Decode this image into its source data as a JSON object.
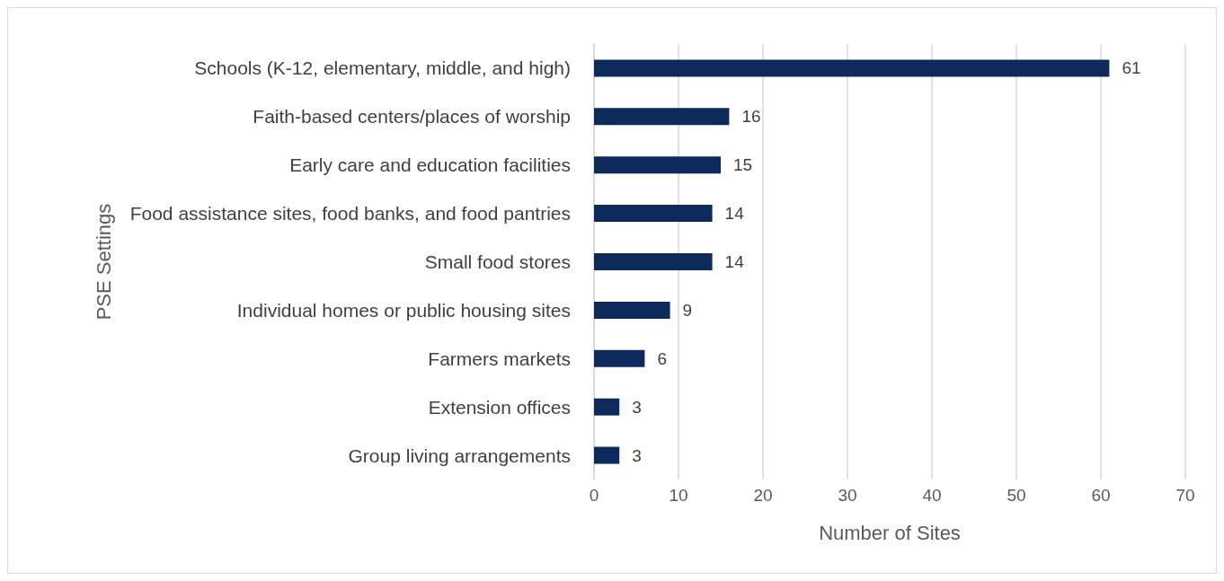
{
  "chart_data": {
    "type": "bar",
    "orientation": "horizontal",
    "xlabel": "Number of Sites",
    "ylabel": "PSE Settings",
    "categories": [
      "Schools (K-12, elementary, middle, and high)",
      "Faith-based centers/places of worship",
      "Early care and education facilities",
      "Food assistance sites, food banks, and food pantries",
      "Small food stores",
      "Individual homes or public housing sites",
      "Farmers markets",
      "Extension offices",
      "Group living arrangements"
    ],
    "values": [
      61,
      16,
      15,
      14,
      14,
      9,
      6,
      3,
      3
    ],
    "color": "#0e2a5c",
    "xlim": [
      0,
      70
    ],
    "xticks": [
      0,
      10,
      20,
      30,
      40,
      50,
      60,
      70
    ],
    "grid": "x",
    "data_labels": true
  }
}
